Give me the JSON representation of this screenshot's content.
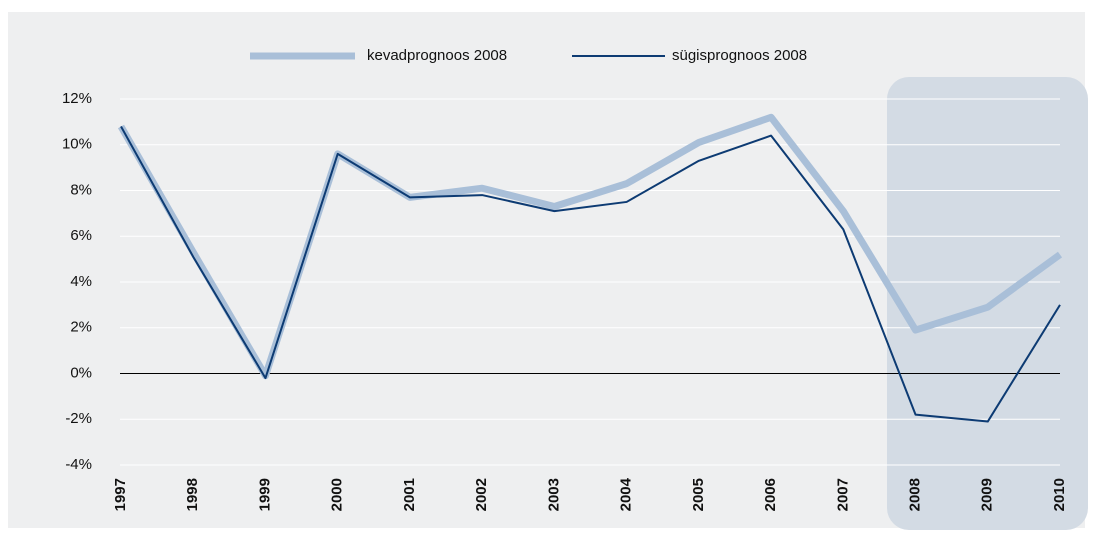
{
  "chart_data": {
    "type": "line",
    "categories": [
      "1997",
      "1998",
      "1999",
      "2000",
      "2001",
      "2002",
      "2003",
      "2004",
      "2005",
      "2006",
      "2007",
      "2008",
      "2009",
      "2010"
    ],
    "series": [
      {
        "name": "kevadprognoos 2008",
        "color": "#a9bfd8",
        "values": [
          10.8,
          5.3,
          -0.1,
          9.6,
          7.7,
          8.1,
          7.3,
          8.3,
          10.1,
          11.2,
          7.1,
          1.9,
          2.9,
          5.2
        ]
      },
      {
        "name": "sügisprognoos 2008",
        "color": "#0d3b73",
        "values": [
          10.8,
          5.1,
          -0.2,
          9.6,
          7.7,
          7.8,
          7.1,
          7.5,
          9.3,
          10.4,
          6.3,
          -1.8,
          -2.1,
          3.0
        ]
      }
    ],
    "ylim": [
      -4,
      12
    ],
    "yticks": [
      {
        "value": -4,
        "label": "-4%"
      },
      {
        "value": -2,
        "label": "-2%"
      },
      {
        "value": 0,
        "label": "0%"
      },
      {
        "value": 2,
        "label": "2%"
      },
      {
        "value": 4,
        "label": "4%"
      },
      {
        "value": 6,
        "label": "6%"
      },
      {
        "value": 8,
        "label": "8%"
      },
      {
        "value": 10,
        "label": "10%"
      },
      {
        "value": 12,
        "label": "12%"
      }
    ],
    "grid": true,
    "legend": "top"
  }
}
